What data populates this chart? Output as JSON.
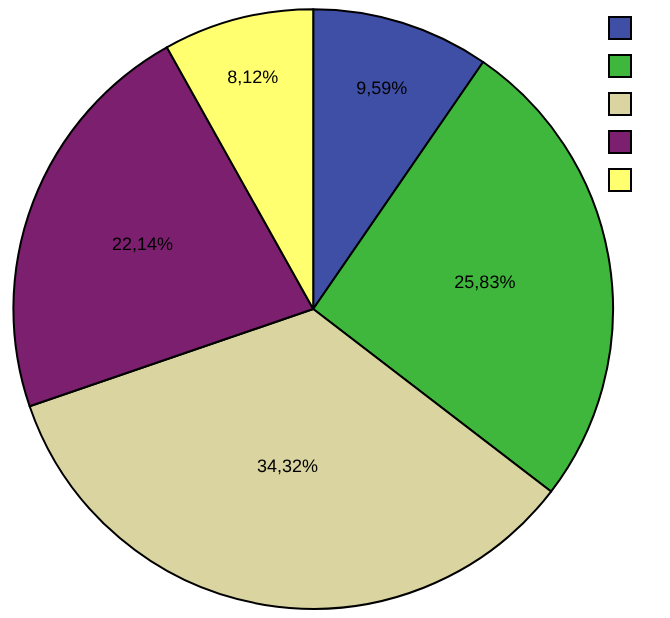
{
  "chart_data": {
    "type": "pie",
    "categories": [
      null,
      null,
      null,
      null,
      null
    ],
    "values": [
      9.59,
      25.83,
      34.32,
      22.14,
      8.12
    ],
    "value_labels": [
      "9,59%",
      "25,83%",
      "34,32%",
      "22,14%",
      "8,12%"
    ],
    "colors": [
      "#3f4fa6",
      "#3fb63c",
      "#d9d4a0",
      "#7b1f6e",
      "#ffff70"
    ]
  }
}
